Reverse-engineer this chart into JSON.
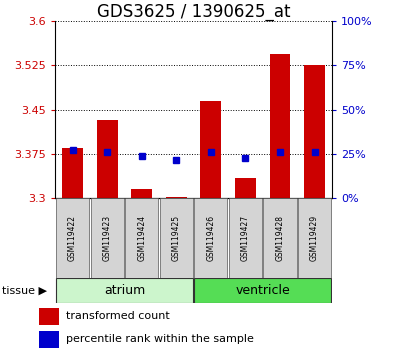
{
  "title": "GDS3625 / 1390625_at",
  "samples": [
    "GSM119422",
    "GSM119423",
    "GSM119424",
    "GSM119425",
    "GSM119426",
    "GSM119427",
    "GSM119428",
    "GSM119429"
  ],
  "red_bottom": [
    3.3,
    3.3,
    3.3,
    3.3,
    3.3,
    3.3,
    3.3,
    3.3
  ],
  "red_top": [
    3.385,
    3.432,
    3.315,
    3.302,
    3.465,
    3.335,
    3.545,
    3.525
  ],
  "blue_vals": [
    3.382,
    3.378,
    3.372,
    3.365,
    3.378,
    3.368,
    3.378,
    3.378
  ],
  "ylim_left": [
    3.3,
    3.6
  ],
  "yticks_left": [
    3.3,
    3.375,
    3.45,
    3.525,
    3.6
  ],
  "yticks_right": [
    0,
    25,
    50,
    75,
    100
  ],
  "groups": [
    {
      "label": "atrium",
      "samples": [
        0,
        1,
        2,
        3
      ],
      "color_light": "#d4f5d4",
      "color_dark": "#55dd55"
    },
    {
      "label": "ventricle",
      "samples": [
        4,
        5,
        6,
        7
      ],
      "color_light": "#55dd55",
      "color_dark": "#33bb33"
    }
  ],
  "bar_color": "#cc0000",
  "dot_color": "#0000cc",
  "tick_color_left": "#cc0000",
  "tick_color_right": "#0000cc",
  "title_fontsize": 12,
  "legend_label_red": "transformed count",
  "legend_label_blue": "percentile rank within the sample",
  "atrium_color": "#ccf5cc",
  "ventricle_color": "#55dd55"
}
